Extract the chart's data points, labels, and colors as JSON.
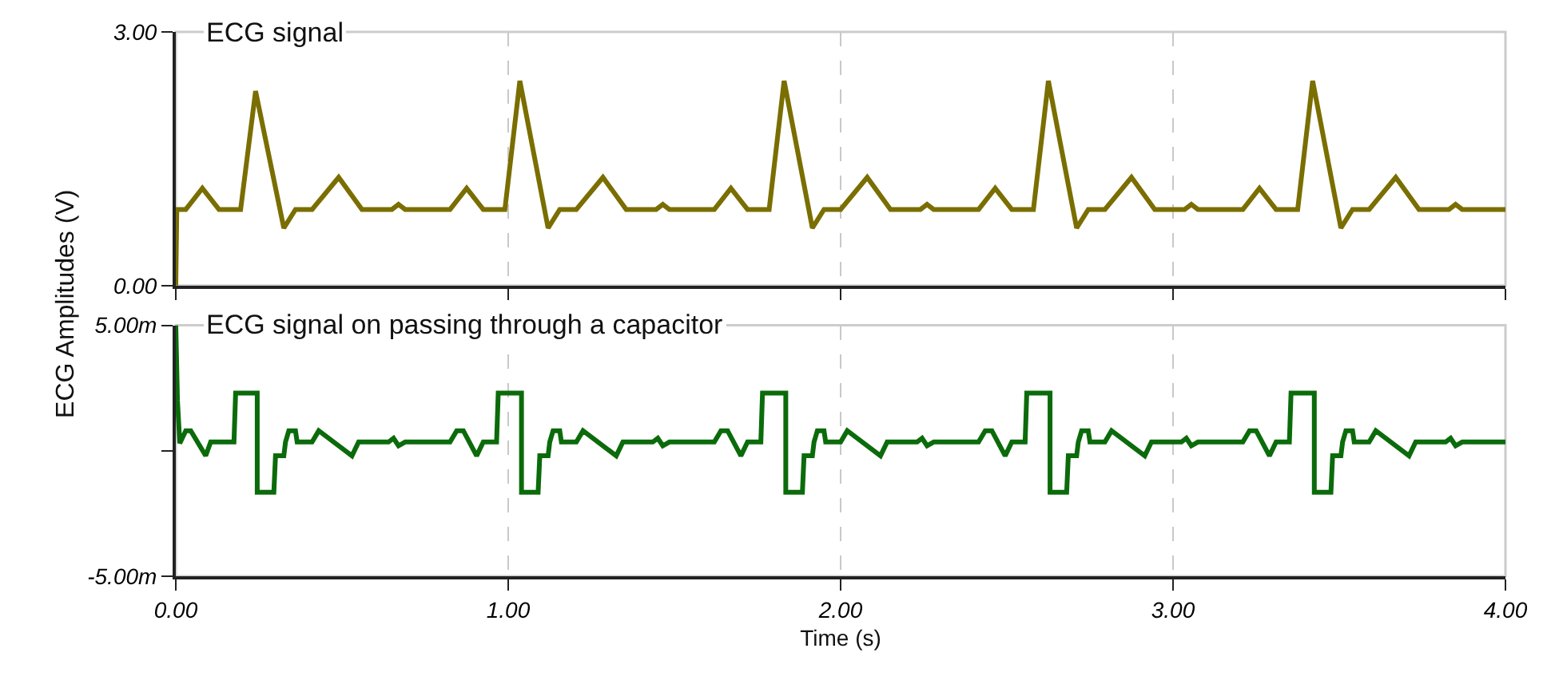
{
  "chart_data": [
    {
      "type": "line",
      "ylabel": "ECG Amplitudes (V)",
      "xlim": [
        0,
        4
      ],
      "xticks": [
        0,
        1,
        2,
        3,
        4
      ],
      "ylim": [
        0,
        3
      ],
      "yticks": [
        {
          "value": 0,
          "label": "0.00"
        },
        {
          "value": 3,
          "label": "3.00"
        }
      ],
      "grid": "x",
      "legend": false,
      "tick_labels": "y",
      "marker": "none",
      "line_style": "solid",
      "series": [
        {
          "name": "ECG signal",
          "color": "#7a6e00",
          "x": [
            0,
            0.003,
            0.03,
            0.08,
            0.13,
            0.195,
            0.24,
            0.325,
            0.36,
            0.41,
            0.49,
            0.56,
            0.65,
            0.67,
            0.69,
            0.825,
            0.875,
            0.925,
            0.99,
            1.035,
            1.12,
            1.155,
            1.205,
            1.285,
            1.355,
            1.445,
            1.465,
            1.485,
            1.62,
            1.67,
            1.72,
            1.785,
            1.83,
            1.915,
            1.95,
            2.0,
            2.08,
            2.15,
            2.24,
            2.26,
            2.28,
            2.415,
            2.465,
            2.515,
            2.58,
            2.625,
            2.71,
            2.745,
            2.795,
            2.875,
            2.945,
            3.035,
            3.055,
            3.075,
            3.21,
            3.26,
            3.31,
            3.375,
            3.42,
            3.505,
            3.54,
            3.59,
            3.67,
            3.74,
            3.83,
            3.85,
            3.87,
            4.0
          ],
          "values": [
            0,
            0.9,
            0.9,
            1.15,
            0.9,
            0.9,
            2.3,
            0.68,
            0.9,
            0.9,
            1.28,
            0.9,
            0.9,
            0.96,
            0.9,
            0.9,
            1.15,
            0.9,
            0.9,
            2.42,
            0.68,
            0.9,
            0.9,
            1.28,
            0.9,
            0.9,
            0.96,
            0.9,
            0.9,
            1.15,
            0.9,
            0.9,
            2.42,
            0.68,
            0.9,
            0.9,
            1.28,
            0.9,
            0.9,
            0.96,
            0.9,
            0.9,
            1.15,
            0.9,
            0.9,
            2.42,
            0.68,
            0.9,
            0.9,
            1.28,
            0.9,
            0.9,
            0.96,
            0.9,
            0.9,
            1.15,
            0.9,
            0.9,
            2.42,
            0.68,
            0.9,
            0.9,
            1.28,
            0.9,
            0.9,
            0.96,
            0.9,
            0.9
          ]
        }
      ]
    },
    {
      "type": "line",
      "xlabel": "Time (s)",
      "xlim": [
        0,
        4
      ],
      "xticks": [
        {
          "value": 0,
          "label": "0.00"
        },
        {
          "value": 1,
          "label": "1.00"
        },
        {
          "value": 2,
          "label": "2.00"
        },
        {
          "value": 3,
          "label": "3.00"
        },
        {
          "value": 4,
          "label": "4.00"
        }
      ],
      "ylim": [
        -5,
        5
      ],
      "yticks": [
        {
          "value": -5,
          "label": "-5.00m"
        },
        {
          "value": 0,
          "label": null
        },
        {
          "value": 5,
          "label": "5.00m"
        }
      ],
      "grid": "x",
      "legend": false,
      "marker": "none",
      "line_style": "solid",
      "series": [
        {
          "name": "ECG signal on passing through a capacitor",
          "color": "#0b6b0b",
          "x": [
            0,
            0.005,
            0.012,
            0.03,
            0.045,
            0.09,
            0.105,
            0.175,
            0.18,
            0.245,
            0.245,
            0.295,
            0.3,
            0.325,
            0.33,
            0.34,
            0.36,
            0.365,
            0.41,
            0.43,
            0.53,
            0.55,
            0.64,
            0.655,
            0.67,
            0.69,
            0.825,
            0.845,
            0.865,
            0.905,
            0.925,
            0.965,
            0.97,
            1.04,
            1.04,
            1.09,
            1.095,
            1.12,
            1.125,
            1.135,
            1.155,
            1.16,
            1.205,
            1.225,
            1.325,
            1.345,
            1.435,
            1.45,
            1.465,
            1.485,
            1.62,
            1.64,
            1.66,
            1.7,
            1.72,
            1.76,
            1.765,
            1.835,
            1.835,
            1.885,
            1.89,
            1.915,
            1.92,
            1.93,
            1.95,
            1.955,
            2.0,
            2.02,
            2.12,
            2.14,
            2.23,
            2.245,
            2.26,
            2.28,
            2.415,
            2.435,
            2.455,
            2.495,
            2.515,
            2.555,
            2.56,
            2.63,
            2.63,
            2.68,
            2.685,
            2.71,
            2.715,
            2.725,
            2.745,
            2.75,
            2.795,
            2.815,
            2.915,
            2.935,
            3.025,
            3.04,
            3.055,
            3.075,
            3.21,
            3.23,
            3.25,
            3.29,
            3.31,
            3.35,
            3.355,
            3.425,
            3.425,
            3.475,
            3.48,
            3.505,
            3.51,
            3.52,
            3.54,
            3.545,
            3.59,
            3.61,
            3.71,
            3.73,
            3.82,
            3.835,
            3.85,
            3.87,
            4.0
          ],
          "values": [
            5,
            2,
            0.3,
            0.8,
            0.8,
            -0.2,
            0.35,
            0.35,
            2.3,
            2.3,
            -1.65,
            -1.65,
            -0.2,
            -0.2,
            0.35,
            0.8,
            0.8,
            0.35,
            0.35,
            0.8,
            -0.2,
            0.35,
            0.35,
            0.5,
            0.2,
            0.35,
            0.35,
            0.8,
            0.8,
            -0.2,
            0.35,
            0.35,
            2.3,
            2.3,
            -1.65,
            -1.65,
            -0.2,
            -0.2,
            0.35,
            0.8,
            0.8,
            0.35,
            0.35,
            0.8,
            -0.2,
            0.35,
            0.35,
            0.5,
            0.2,
            0.35,
            0.35,
            0.8,
            0.8,
            -0.2,
            0.35,
            0.35,
            2.3,
            2.3,
            -1.65,
            -1.65,
            -0.2,
            -0.2,
            0.35,
            0.8,
            0.8,
            0.35,
            0.35,
            0.8,
            -0.2,
            0.35,
            0.35,
            0.5,
            0.2,
            0.35,
            0.35,
            0.8,
            0.8,
            -0.2,
            0.35,
            0.35,
            2.3,
            2.3,
            -1.65,
            -1.65,
            -0.2,
            -0.2,
            0.35,
            0.8,
            0.8,
            0.35,
            0.35,
            0.8,
            -0.2,
            0.35,
            0.35,
            0.5,
            0.2,
            0.35,
            0.35,
            0.8,
            0.8,
            -0.2,
            0.35,
            0.35,
            2.3,
            2.3,
            -1.65,
            -1.65,
            -0.2,
            -0.2,
            0.35,
            0.8,
            0.8,
            0.35,
            0.35,
            0.8,
            -0.2,
            0.35,
            0.35,
            0.5,
            0.2,
            0.35,
            0.35
          ]
        }
      ]
    }
  ]
}
